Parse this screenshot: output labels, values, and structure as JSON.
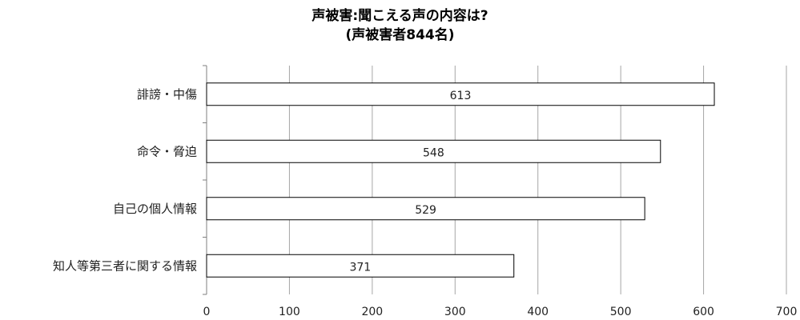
{
  "chart_data": {
    "type": "bar",
    "orientation": "horizontal",
    "title": "声被害:聞こえる声の内容は?",
    "subtitle": "(声被害者844名)",
    "categories": [
      "誹謗・中傷",
      "命令・脅迫",
      "自己の個人情報",
      "知人等第三者に関する情報"
    ],
    "values": [
      613,
      548,
      529,
      371
    ],
    "data_labels": [
      "613",
      "548",
      "529",
      "371"
    ],
    "xlim": [
      0,
      700
    ],
    "xticks": [
      0,
      100,
      200,
      300,
      400,
      500,
      600,
      700
    ],
    "xtick_labels": [
      "0",
      "100",
      "200",
      "300",
      "400",
      "500",
      "600",
      "700"
    ],
    "grid": "vertical",
    "colors": {
      "bar_fill": "#ffffff",
      "bar_stroke": "#000000",
      "grid": "#a6a6a6",
      "axis": "#7f7f7f"
    }
  }
}
